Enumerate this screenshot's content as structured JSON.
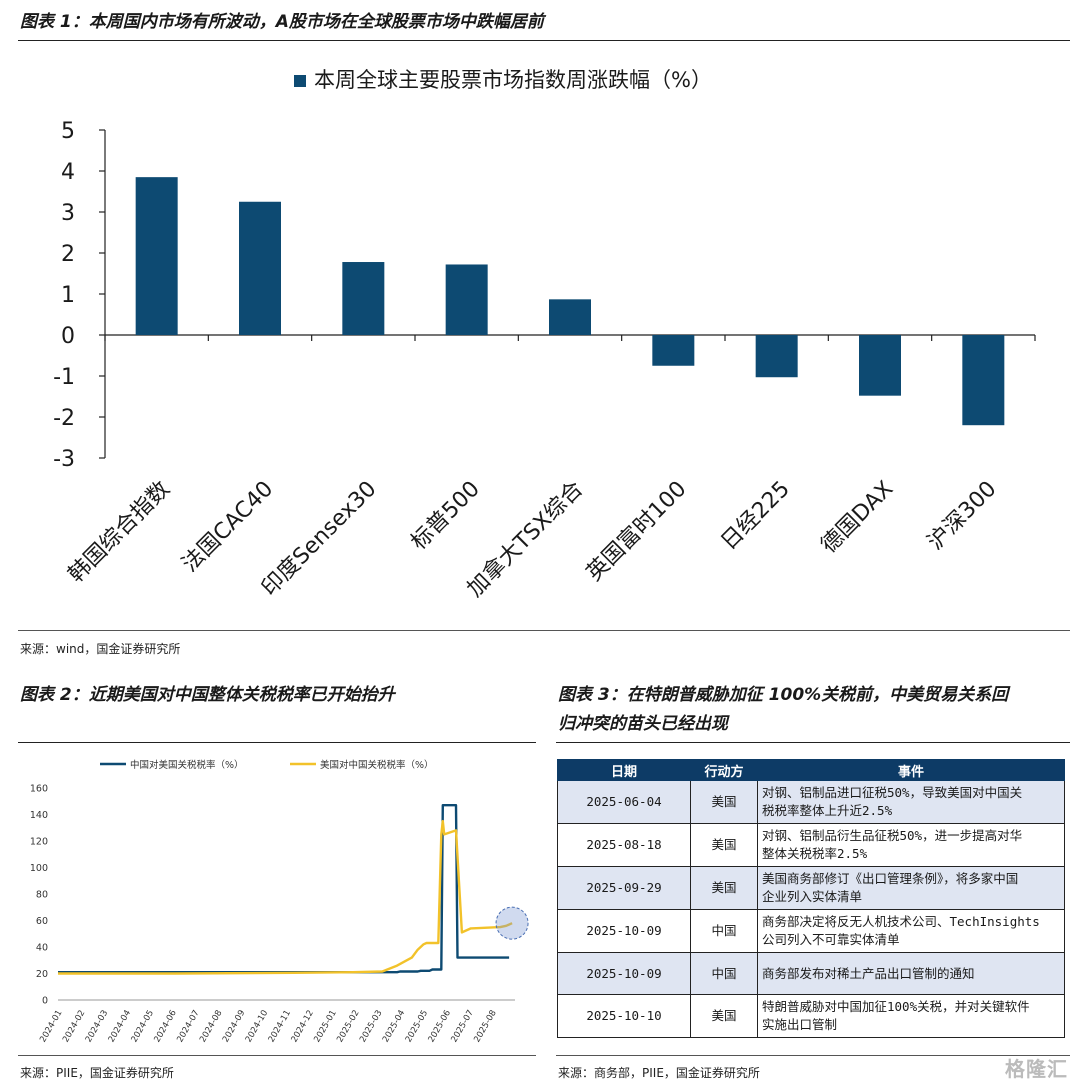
{
  "figure1": {
    "heading": "图表 1：本周国内市场有所波动，A股市场在全球股票市场中跌幅居前",
    "source": "来源：wind，国金证券研究所"
  },
  "figure2": {
    "heading": "图表 2：近期美国对中国整体关税税率已开始抬升",
    "source": "来源：PIIE，国金证券研究所"
  },
  "figure3": {
    "heading_line1": "图表 3：在特朗普威胁加征 100%关税前，中美贸易关系回",
    "heading_line2": "归冲突的苗头已经出现",
    "source": "来源：商务部，PIIE，国金证券研究所"
  },
  "watermark": "格隆汇",
  "chart_data": [
    {
      "type": "bar",
      "title": "",
      "legend": [
        "本周全球主要股票市场指数周涨跌幅（%）"
      ],
      "legend_position": "top",
      "categories": [
        "韩国综合指数",
        "法国CAC40",
        "印度Sensex30",
        "标普500",
        "加拿大TSX综合",
        "英国富时100",
        "日经225",
        "德国DAX",
        "沪深300"
      ],
      "values": [
        3.85,
        3.25,
        1.78,
        1.72,
        0.87,
        -0.75,
        -1.03,
        -1.48,
        -2.2
      ],
      "yticks": [
        "5",
        "4",
        "3",
        "2",
        "1",
        "0",
        "-1",
        "-2",
        "-3"
      ],
      "ylim": [
        -3,
        5
      ],
      "color": "#0d4a72"
    },
    {
      "type": "line",
      "series": [
        {
          "name": "中国对美国关税税率（%）",
          "color": "#0d4a72",
          "points": [
            [
              0,
              21
            ],
            [
              10,
              21
            ],
            [
              11.5,
              21
            ],
            [
              11.6,
              21.5
            ],
            [
              12.2,
              21.5
            ],
            [
              12.3,
              22
            ],
            [
              12.6,
              22
            ],
            [
              12.7,
              23
            ],
            [
              13.0,
              23
            ],
            [
              13.05,
              147
            ],
            [
              13.5,
              147
            ],
            [
              13.55,
              32
            ],
            [
              15.3,
              32
            ]
          ]
        },
        {
          "name": "美国对中国关税税率（%）",
          "color": "#f2c22a",
          "points": [
            [
              0,
              20
            ],
            [
              4,
              20
            ],
            [
              8,
              20.5
            ],
            [
              10,
              21
            ],
            [
              11,
              21.5
            ],
            [
              11.5,
              26
            ],
            [
              12.0,
              32
            ],
            [
              12.2,
              38
            ],
            [
              12.4,
              42
            ],
            [
              12.5,
              43
            ],
            [
              12.9,
              43
            ],
            [
              13.0,
              125
            ],
            [
              13.05,
              135
            ],
            [
              13.1,
              125
            ],
            [
              13.5,
              128
            ],
            [
              13.7,
              51
            ],
            [
              14.0,
              54
            ],
            [
              15.0,
              55
            ],
            [
              15.2,
              56
            ],
            [
              15.4,
              58
            ]
          ]
        }
      ],
      "xticks": [
        "2024-01",
        "2024-02",
        "2024-03",
        "2024-04",
        "2024-05",
        "2024-06",
        "2024-07",
        "2024-08",
        "2024-09",
        "2024-10",
        "2024-11",
        "2024-12",
        "2025-01",
        "2025-02",
        "2025-03",
        "2025-04",
        "2025-05",
        "2025-06",
        "2025-07",
        "2025-08"
      ],
      "yticks": [
        "0",
        "20",
        "40",
        "60",
        "80",
        "100",
        "120",
        "140",
        "160"
      ],
      "xlim": [
        0,
        15.5
      ],
      "ylim": [
        0,
        160
      ],
      "highlight_point": [
        15.4,
        58
      ],
      "legend_position": "top"
    },
    {
      "type": "table",
      "columns": [
        "日期",
        "行动方",
        "事件"
      ],
      "rows": [
        {
          "date": "2025-06-04",
          "actor": "美国",
          "event_lines": [
            "对钢、铝制品进口征税50%，导致美国对中国关",
            "税税率整体上升近2.5%"
          ],
          "shade": true
        },
        {
          "date": "2025-08-18",
          "actor": "美国",
          "event_lines": [
            "对钢、铝制品衍生品征税50%，进一步提高对华",
            "整体关税税率2.5%"
          ],
          "shade": false
        },
        {
          "date": "2025-09-29",
          "actor": "美国",
          "event_lines": [
            "美国商务部修订《出口管理条例》，将多家中国",
            "企业列入实体清单"
          ],
          "shade": true
        },
        {
          "date": "2025-10-09",
          "actor": "中国",
          "event_lines": [
            "商务部决定将反无人机技术公司、TechInsights",
            "公司列入不可靠实体清单"
          ],
          "shade": false
        },
        {
          "date": "2025-10-09",
          "actor": "中国",
          "event_lines": [
            "商务部发布对稀土产品出口管制的通知"
          ],
          "shade": true
        },
        {
          "date": "2025-10-10",
          "actor": "美国",
          "event_lines": [
            "特朗普威胁对中国加征100%关税，并对关键软件",
            "实施出口管制"
          ],
          "shade": false
        }
      ]
    }
  ]
}
